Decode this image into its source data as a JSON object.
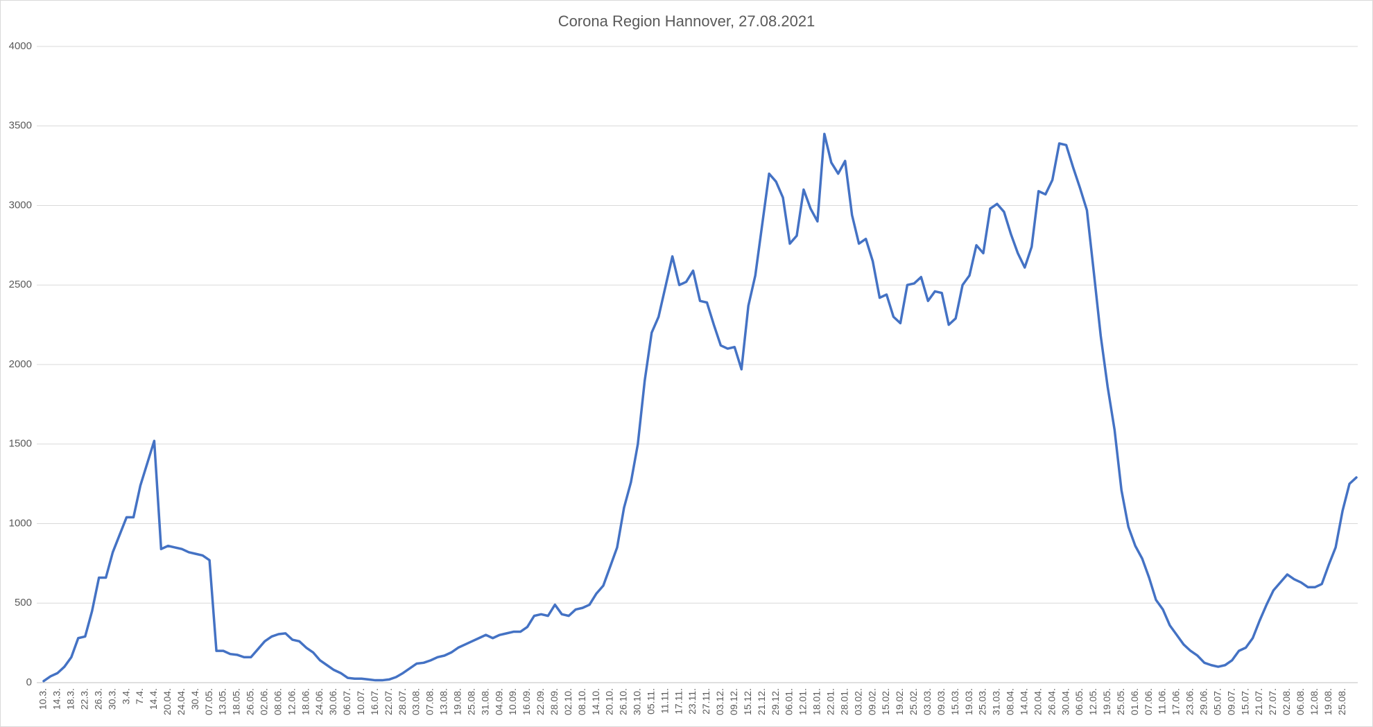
{
  "chart_data": {
    "type": "line",
    "title": "Corona Region Hannover, 27.08.2021",
    "categories": [
      "10.3.",
      null,
      "14.3.",
      null,
      "18.3.",
      null,
      "22.3.",
      null,
      "26.3.",
      null,
      "30.3.",
      null,
      "3.4.",
      null,
      "7.4.",
      null,
      "14.4.",
      null,
      "20.04.",
      null,
      "24.04.",
      null,
      "30.4.",
      null,
      "07.05.",
      null,
      "13.05.",
      null,
      "18.05.",
      null,
      "26.05.",
      null,
      "02.06.",
      null,
      "08.06.",
      null,
      "12.06.",
      null,
      "18.06.",
      null,
      "24.06.",
      null,
      "30.06.",
      null,
      "06.07.",
      null,
      "10.07.",
      null,
      "16.07.",
      null,
      "22.07.",
      null,
      "28.07.",
      null,
      "03.08.",
      null,
      "07.08.",
      null,
      "13.08.",
      null,
      "19.08.",
      null,
      "25.08.",
      null,
      "31.08.",
      null,
      "04.09.",
      null,
      "10.09.",
      null,
      "16.09.",
      null,
      "22.09.",
      null,
      "28.09.",
      null,
      "02.10.",
      null,
      "08.10.",
      null,
      "14.10.",
      null,
      "20.10.",
      null,
      "26.10.",
      null,
      "30.10.",
      null,
      "05.11.",
      null,
      "11.11.",
      null,
      "17.11.",
      null,
      "23.11.",
      null,
      "27.11.",
      null,
      "03.12.",
      null,
      "09.12.",
      null,
      "15.12.",
      null,
      "21.12.",
      null,
      "29.12.",
      null,
      "06.01.",
      null,
      "12.01.",
      null,
      "18.01.",
      null,
      "22.01.",
      null,
      "28.01.",
      null,
      "03.02.",
      null,
      "09.02.",
      null,
      "15.02.",
      null,
      "19.02.",
      null,
      "25.02.",
      null,
      "03.03.",
      null,
      "09.03.",
      null,
      "15.03.",
      null,
      "19.03.",
      null,
      "25.03.",
      null,
      "31.03.",
      null,
      "08.04.",
      null,
      "14.04.",
      null,
      "20.04.",
      null,
      "26.04.",
      null,
      "30.04.",
      null,
      "06.05.",
      null,
      "12.05.",
      null,
      "19.05.",
      null,
      "25.05.",
      null,
      "01.06.",
      null,
      "07.06.",
      null,
      "11.06.",
      null,
      "17.06.",
      null,
      "23.06.",
      null,
      "29.06.",
      null,
      "05.07.",
      null,
      "09.07.",
      null,
      "15.07.",
      null,
      "21.07.",
      null,
      "27.07.",
      null,
      "02.08.",
      null,
      "06.08.",
      null,
      "12.08.",
      null,
      "19.08.",
      null,
      "25.08.",
      null,
      null
    ],
    "values": [
      10,
      40,
      60,
      100,
      160,
      280,
      290,
      450,
      660,
      660,
      820,
      930,
      1040,
      1040,
      1240,
      1380,
      1520,
      840,
      860,
      850,
      840,
      820,
      810,
      800,
      770,
      200,
      200,
      180,
      175,
      160,
      160,
      210,
      260,
      290,
      305,
      310,
      270,
      260,
      220,
      190,
      140,
      110,
      80,
      60,
      30,
      25,
      25,
      20,
      15,
      15,
      20,
      35,
      60,
      90,
      120,
      125,
      140,
      160,
      170,
      190,
      220,
      240,
      260,
      280,
      300,
      280,
      300,
      310,
      320,
      320,
      350,
      420,
      430,
      420,
      490,
      430,
      420,
      460,
      470,
      490,
      560,
      610,
      730,
      850,
      1100,
      1260,
      1500,
      1900,
      2200,
      2300,
      2490,
      2680,
      2500,
      2520,
      2590,
      2400,
      2390,
      2250,
      2120,
      2100,
      2110,
      1970,
      2370,
      2560,
      2880,
      3200,
      3150,
      3050,
      2760,
      2810,
      3100,
      2980,
      2900,
      3450,
      3270,
      3200,
      3280,
      2940,
      2760,
      2790,
      2650,
      2420,
      2440,
      2300,
      2260,
      2500,
      2510,
      2550,
      2400,
      2460,
      2450,
      2250,
      2290,
      2500,
      2560,
      2750,
      2700,
      2980,
      3010,
      2960,
      2820,
      2700,
      2610,
      2740,
      3090,
      3070,
      3160,
      3390,
      3380,
      3240,
      3110,
      2970,
      2580,
      2180,
      1860,
      1590,
      1210,
      980,
      860,
      780,
      660,
      520,
      460,
      360,
      300,
      240,
      200,
      170,
      125,
      110,
      100,
      110,
      140,
      200,
      220,
      280,
      390,
      490,
      580,
      630,
      680,
      650,
      630,
      600,
      600,
      620,
      740,
      850,
      1080,
      1250,
      1290
    ],
    "color": "#4472c4",
    "ylim": [
      0,
      4000
    ],
    "yticks": [
      0,
      500,
      1000,
      1500,
      2000,
      2500,
      3000,
      3500,
      4000
    ],
    "grid": true
  }
}
